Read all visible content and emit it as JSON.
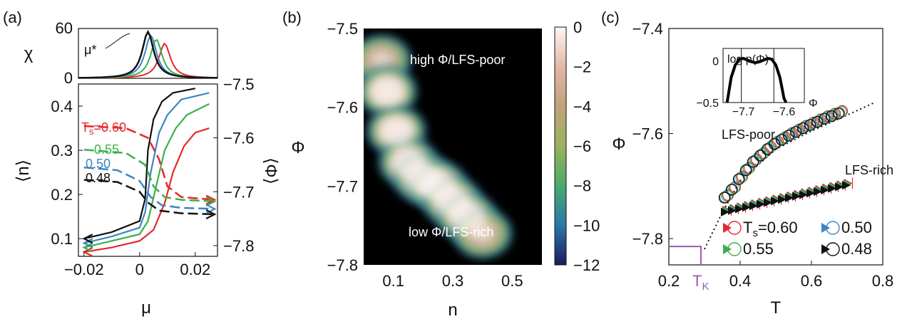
{
  "panels": [
    {
      "label": "(a)"
    },
    {
      "label": "(b)"
    },
    {
      "label": "(c)"
    }
  ],
  "colors": {
    "Ts_060": "#e8262b",
    "Ts_055": "#3db04a",
    "Ts_050": "#3b86c4",
    "Ts_048": "#111111",
    "purple": "#9b59b6",
    "heat_bg": "#000000"
  },
  "chart_data": [
    {
      "id": "a-top",
      "type": "line",
      "ylabel": "χ",
      "yticks": [
        "0",
        "60"
      ],
      "ylim": [
        0,
        60
      ],
      "xlim": [
        -0.022,
        0.028
      ],
      "annotation": "μ*",
      "series": [
        {
          "key": "Ts_060",
          "peak_x": 0.009,
          "peak_y": 42
        },
        {
          "key": "Ts_055",
          "peak_x": 0.006,
          "peak_y": 47
        },
        {
          "key": "Ts_050",
          "peak_x": 0.004,
          "peak_y": 52
        },
        {
          "key": "Ts_048",
          "peak_x": 0.003,
          "peak_y": 56
        }
      ]
    },
    {
      "id": "a-bottom",
      "type": "line",
      "xlabel": "μ",
      "ylabel_left": "⟨n⟩",
      "ylabel_right": "⟨Φ⟩",
      "xticks": [
        "−0.02",
        "0",
        "0.02"
      ],
      "xtick_values": [
        -0.02,
        0,
        0.02
      ],
      "yticks_left": [
        "0.1",
        "0.2",
        "0.3",
        "0.4"
      ],
      "ytick_values_left": [
        0.1,
        0.2,
        0.3,
        0.4
      ],
      "yticks_right": [
        "−7.5",
        "−7.6",
        "−7.7",
        "−7.8"
      ],
      "ytick_values_right": [
        -7.5,
        -7.6,
        -7.7,
        -7.8
      ],
      "xlim": [
        -0.022,
        0.028
      ],
      "ylim_left": [
        0.06,
        0.45
      ],
      "ylim_right": [
        -7.82,
        -7.5
      ],
      "labels": [
        {
          "key": "Ts_060",
          "text": "T",
          "sub": "s",
          "rest": "=0.60"
        },
        {
          "key": "Ts_055",
          "text": "0.55"
        },
        {
          "key": "Ts_050",
          "text": "0.50"
        },
        {
          "key": "Ts_048",
          "text": "0.48"
        }
      ],
      "n_series": [
        {
          "key": "Ts_060",
          "x": [
            -0.02,
            -0.01,
            0.0,
            0.005,
            0.009,
            0.012,
            0.016,
            0.02,
            0.025
          ],
          "y": [
            0.07,
            0.08,
            0.095,
            0.12,
            0.18,
            0.25,
            0.31,
            0.34,
            0.35
          ]
        },
        {
          "key": "Ts_055",
          "x": [
            -0.02,
            -0.01,
            0.0,
            0.003,
            0.006,
            0.009,
            0.013,
            0.017,
            0.025
          ],
          "y": [
            0.08,
            0.095,
            0.11,
            0.14,
            0.22,
            0.3,
            0.35,
            0.38,
            0.405
          ]
        },
        {
          "key": "Ts_050",
          "x": [
            -0.02,
            -0.01,
            0.0,
            0.002,
            0.004,
            0.007,
            0.01,
            0.015,
            0.025
          ],
          "y": [
            0.09,
            0.105,
            0.125,
            0.16,
            0.25,
            0.34,
            0.38,
            0.415,
            0.43
          ]
        },
        {
          "key": "Ts_048",
          "x": [
            -0.02,
            -0.01,
            0.0,
            0.002,
            0.003,
            0.005,
            0.008,
            0.012,
            0.02
          ],
          "y": [
            0.1,
            0.115,
            0.14,
            0.19,
            0.3,
            0.37,
            0.41,
            0.43,
            0.44
          ]
        }
      ],
      "phi_series": [
        {
          "key": "Ts_060",
          "x": [
            -0.02,
            -0.005,
            0.003,
            0.007,
            0.01,
            0.015,
            0.027
          ],
          "y": [
            -7.578,
            -7.582,
            -7.6,
            -7.64,
            -7.69,
            -7.71,
            -7.715
          ]
        },
        {
          "key": "Ts_055",
          "x": [
            -0.02,
            -0.005,
            0.002,
            0.005,
            0.009,
            0.015,
            0.027
          ],
          "y": [
            -7.622,
            -7.628,
            -7.65,
            -7.69,
            -7.71,
            -7.715,
            -7.718
          ]
        },
        {
          "key": "Ts_050",
          "x": [
            -0.02,
            -0.008,
            0.0,
            0.004,
            0.008,
            0.015,
            0.027
          ],
          "y": [
            -7.655,
            -7.66,
            -7.68,
            -7.71,
            -7.725,
            -7.73,
            -7.732
          ]
        },
        {
          "key": "Ts_048",
          "x": [
            -0.02,
            -0.008,
            0.0,
            0.003,
            0.007,
            0.015,
            0.027
          ],
          "y": [
            -7.678,
            -7.682,
            -7.7,
            -7.72,
            -7.735,
            -7.74,
            -7.742
          ]
        }
      ]
    },
    {
      "id": "b",
      "type": "heatmap",
      "xlabel": "n",
      "ylabel": "Φ",
      "xticks": [
        "0.1",
        "0.3",
        "0.5"
      ],
      "xtick_values": [
        0.1,
        0.3,
        0.5
      ],
      "yticks": [
        "−7.5",
        "−7.6",
        "−7.7",
        "−7.8"
      ],
      "ytick_values": [
        -7.5,
        -7.6,
        -7.7,
        -7.8
      ],
      "xlim": [
        0.0,
        0.6
      ],
      "ylim": [
        -7.8,
        -7.5
      ],
      "colorbar_ticks": [
        "0",
        "−2",
        "−4",
        "−6",
        "−8",
        "−10",
        "−12"
      ],
      "colorbar_values": [
        0,
        -2,
        -4,
        -6,
        -8,
        -10,
        -12
      ],
      "annotations": [
        "high Φ/LFS-poor",
        "low Φ/LFS-rich"
      ],
      "ridge": {
        "n": [
          0.06,
          0.08,
          0.11,
          0.15,
          0.2,
          0.25,
          0.3,
          0.35,
          0.4
        ],
        "phi": [
          -7.54,
          -7.58,
          -7.63,
          -7.67,
          -7.69,
          -7.7,
          -7.72,
          -7.74,
          -7.76
        ]
      }
    },
    {
      "id": "c",
      "type": "scatter",
      "xlabel": "T",
      "ylabel": "Φ",
      "xticks": [
        "0.2",
        "0.4",
        "0.6",
        "0.8"
      ],
      "xtick_values": [
        0.2,
        0.4,
        0.6,
        0.8
      ],
      "yticks": [
        "−7.4",
        "−7.6",
        "−7.8"
      ],
      "ytick_values": [
        -7.4,
        -7.6,
        -7.8
      ],
      "xlim": [
        0.2,
        0.8
      ],
      "ylim": [
        -7.85,
        -7.4
      ],
      "tk_label": "T",
      "tk_sub": "K",
      "tk_value": 0.29,
      "tk_phi": -7.815,
      "annotations": [
        "LFS-poor",
        "LFS-rich"
      ],
      "legend": [
        {
          "key": "Ts_060",
          "label_main": "T",
          "label_sub": "s",
          "label_rest": "=0.60"
        },
        {
          "key": "Ts_050",
          "label_main": "0.50"
        },
        {
          "key": "Ts_055",
          "label_main": "0.55"
        },
        {
          "key": "Ts_048",
          "label_main": "0.48"
        }
      ],
      "dotted_fit": {
        "T": [
          0.26,
          0.3,
          0.35,
          0.4,
          0.5,
          0.6,
          0.7,
          0.78
        ],
        "phi": [
          -7.88,
          -7.82,
          -7.75,
          -7.69,
          -7.63,
          -7.595,
          -7.565,
          -7.54
        ]
      },
      "lfs_poor": {
        "T": [
          0.36,
          0.38,
          0.4,
          0.42,
          0.44,
          0.46,
          0.48,
          0.5,
          0.52,
          0.54,
          0.56,
          0.58,
          0.6,
          0.62,
          0.64,
          0.66,
          0.68
        ],
        "phi": [
          -7.72,
          -7.705,
          -7.685,
          -7.668,
          -7.652,
          -7.64,
          -7.628,
          -7.618,
          -7.61,
          -7.602,
          -7.595,
          -7.588,
          -7.582,
          -7.576,
          -7.57,
          -7.565,
          -7.56
        ]
      },
      "lfs_rich": {
        "T": [
          0.36,
          0.38,
          0.4,
          0.42,
          0.44,
          0.46,
          0.48,
          0.5,
          0.52,
          0.54,
          0.56,
          0.58,
          0.6,
          0.62,
          0.64,
          0.66,
          0.68,
          0.7
        ],
        "phi": [
          -7.748,
          -7.745,
          -7.742,
          -7.739,
          -7.736,
          -7.733,
          -7.73,
          -7.727,
          -7.724,
          -7.721,
          -7.718,
          -7.715,
          -7.712,
          -7.709,
          -7.706,
          -7.703,
          -7.7,
          -7.697
        ]
      },
      "inset": {
        "ylabel": "log p(Φ)",
        "xlabel": "Φ",
        "xticks": [
          "−7.7",
          "−7.6"
        ],
        "xtick_values": [
          -7.7,
          -7.6
        ],
        "yticks": [
          "0",
          "−0.5"
        ],
        "ytick_values": [
          0,
          -0.5
        ],
        "xlim": [
          -7.75,
          -7.55
        ],
        "ylim": [
          -0.5,
          0.15
        ],
        "curve_x": [
          -7.74,
          -7.73,
          -7.72,
          -7.71,
          -7.7,
          -7.69,
          -7.68,
          -7.67,
          -7.66,
          -7.65,
          -7.64,
          -7.63,
          -7.62,
          -7.61,
          -7.6,
          -7.595
        ],
        "curve_y": [
          -0.5,
          -0.2,
          -0.05,
          0.02,
          0.03,
          0.01,
          -0.01,
          -0.02,
          -0.01,
          0.01,
          0.03,
          0.02,
          -0.05,
          -0.2,
          -0.45,
          -0.5
        ],
        "vlines": [
          -7.705,
          -7.625
        ]
      }
    }
  ]
}
